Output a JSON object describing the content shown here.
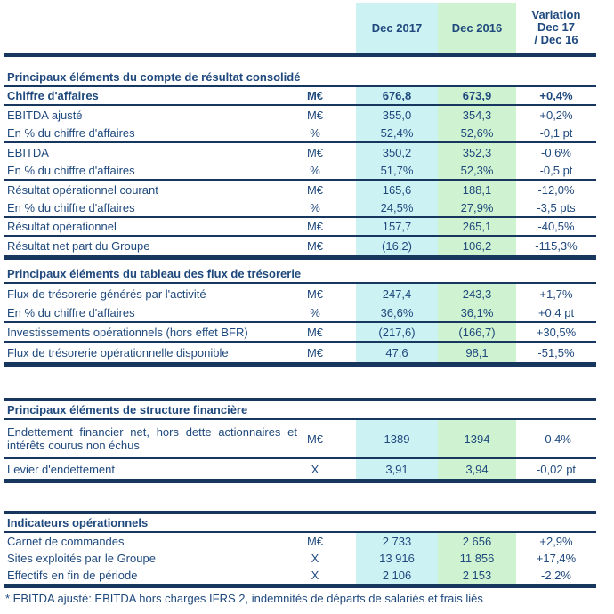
{
  "palette": {
    "navy": "#17375E",
    "text_blue": "#1F497D",
    "dec2017_bg": "#CCF2F4",
    "dec2016_bg": "#CFF3D1"
  },
  "header": {
    "col_2017": "Dec 2017",
    "col_2016": "Dec 2016",
    "variation_lines": [
      "Variation",
      "Dec 17",
      "/ Dec 16"
    ]
  },
  "sections": [
    {
      "title": "Principaux éléments du compte de résultat consolidé",
      "rows": [
        {
          "label": "Chiffre d'affaires",
          "unit": "M€",
          "v2017": "676,8",
          "v2016": "673,9",
          "variation": "+0,4%"
        },
        {
          "label": "EBITDA ajusté",
          "unit": "M€",
          "v2017": "355,0",
          "v2016": "354,3",
          "variation": "+0,2%"
        },
        {
          "label": "En % du chiffre d'affaires",
          "unit": "%",
          "v2017": "52,4%",
          "v2016": "52,6%",
          "variation": "-0,1 pt"
        },
        {
          "label": "EBITDA",
          "unit": "M€",
          "v2017": "350,2",
          "v2016": "352,3",
          "variation": "-0,6%"
        },
        {
          "label": "En % du chiffre d'affaires",
          "unit": "%",
          "v2017": "51,7%",
          "v2016": "52,3%",
          "variation": "-0,5 pt"
        },
        {
          "label": "Résultat opérationnel courant",
          "unit": "M€",
          "v2017": "165,6",
          "v2016": "188,1",
          "variation": "-12,0%"
        },
        {
          "label": "En % du chiffre d'affaires",
          "unit": "%",
          "v2017": "24,5%",
          "v2016": "27,9%",
          "variation": "-3,5 pts"
        },
        {
          "label": "Résultat opérationnel",
          "unit": "M€",
          "v2017": "157,7",
          "v2016": "265,1",
          "variation": "-40,5%"
        },
        {
          "label": "Résultat net part du Groupe",
          "unit": "M€",
          "v2017": "(16,2)",
          "v2016": "106,2",
          "variation": "-115,3%"
        }
      ]
    },
    {
      "title": "Principaux éléments du tableau des flux de trésorerie",
      "rows": [
        {
          "label": "Flux de trésorerie générés par l'activité",
          "unit": "M€",
          "v2017": "247,4",
          "v2016": "243,3",
          "variation": "+1,7%"
        },
        {
          "label": "En % du chiffre d'affaires",
          "unit": "%",
          "v2017": "36,6%",
          "v2016": "36,1%",
          "variation": "+0,4 pt"
        },
        {
          "label": "Investissements opérationnels (hors effet BFR)",
          "unit": "M€",
          "v2017": "(217,6)",
          "v2016": "(166,7)",
          "variation": "+30,5%"
        },
        {
          "label": "Flux de trésorerie opérationnelle disponible",
          "unit": "M€",
          "v2017": "47,6",
          "v2016": "98,1",
          "variation": "-51,5%"
        }
      ]
    },
    {
      "title": "Principaux éléments de structure financière",
      "rows": [
        {
          "label_line1": "Endettement financier net, hors dette actionnaires et",
          "label_line2": "intérêts courus non échus",
          "unit": "M€",
          "v2017": "1389",
          "v2016": "1394",
          "variation": "-0,4%"
        },
        {
          "label": "Levier d'endettement",
          "unit": "X",
          "v2017": "3,91",
          "v2016": "3,94",
          "variation": "-0,02 pt"
        }
      ]
    },
    {
      "title": "Indicateurs opérationnels",
      "rows": [
        {
          "label": "Carnet de commandes",
          "unit": "M€",
          "v2017": "2 733",
          "v2016": "2 656",
          "variation": "+2,9%"
        },
        {
          "label": "Sites exploités par le Groupe",
          "unit": "X",
          "v2017": "13 916",
          "v2016": "11 856",
          "variation": "+17,4%"
        },
        {
          "label": "Effectifs en fin de période",
          "unit": "X",
          "v2017": "2 106",
          "v2016": "2 153",
          "variation": "-2,2%"
        }
      ]
    }
  ],
  "footnote": "* EBITDA ajusté: EBITDA hors charges IFRS 2, indemnités de départs de salariés et frais liés"
}
